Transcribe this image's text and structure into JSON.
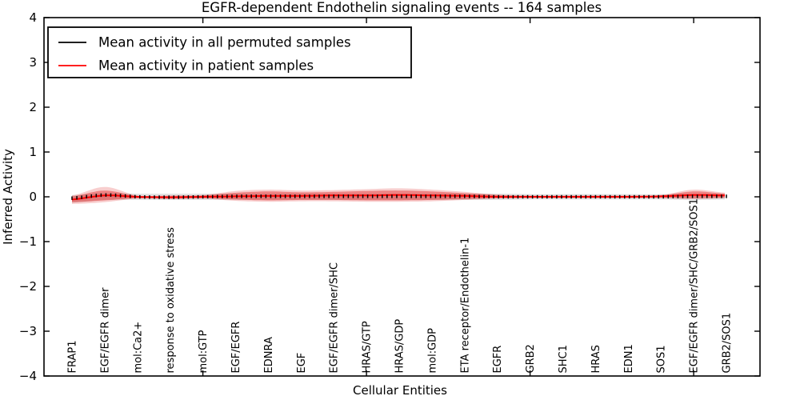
{
  "figure": {
    "background": "#ffffff",
    "border_color": "#000000"
  },
  "chart_data": {
    "type": "line",
    "title": "EGFR-dependent Endothelin signaling events -- 164 samples",
    "xlabel": "Cellular Entities",
    "ylabel": "Inferred Activity",
    "ylim": [
      -4,
      4
    ],
    "yticks": [
      4,
      3,
      2,
      1,
      0,
      -1,
      -2,
      -3,
      -4
    ],
    "y_tick_labels": [
      "4",
      "3",
      "2",
      "1",
      "0",
      "−1",
      "−2",
      "−3",
      "−4"
    ],
    "x_major_tick_indices": [
      4,
      9,
      14,
      19
    ],
    "grid": "off",
    "legend": {
      "position": "upper left",
      "entries": [
        {
          "label": "Mean activity in all permuted samples",
          "color": "#000000"
        },
        {
          "label": "Mean activity in patient samples",
          "color": "#ff0000"
        }
      ]
    },
    "categories": [
      "FRAP1",
      "EGF/EGFR dimer",
      "mol:Ca2+",
      "response to oxidative stress",
      "mol:GTP",
      "EGF/EGFR",
      "EDNRA",
      "EGF",
      "EGF/EGFR dimer/SHC",
      "HRAS/GTP",
      "HRAS/GDP",
      "mol:GDP",
      "ETA receptor/Endothelin-1",
      "EGFR",
      "GRB2",
      "SHC1",
      "HRAS",
      "EDN1",
      "SOS1",
      "EGF/EGFR dimer/SHC/GRB2/SOS1",
      "GRB2/SOS1"
    ],
    "series": [
      {
        "name": "Mean activity in all permuted samples",
        "color": "#000000",
        "style": "dashed-tick-markers",
        "values": [
          -0.03,
          0.04,
          0.0,
          -0.01,
          0.0,
          0.01,
          0.01,
          0.01,
          0.01,
          0.01,
          0.01,
          0.01,
          0.01,
          0.0,
          0.0,
          0.0,
          0.0,
          0.0,
          0.0,
          0.01,
          0.01
        ]
      },
      {
        "name": "Mean activity in patient samples",
        "color": "#ff0000",
        "style": "solid",
        "values": [
          -0.06,
          0.03,
          0.0,
          -0.01,
          0.0,
          0.01,
          0.02,
          0.02,
          0.03,
          0.03,
          0.04,
          0.03,
          0.02,
          0.0,
          0.0,
          0.0,
          0.0,
          0.0,
          0.01,
          0.04,
          0.03
        ]
      }
    ],
    "bands": [
      {
        "name": "permuted-sample-range",
        "color": "rgba(60,60,60,0.16)",
        "hi": [
          0.04,
          0.08,
          0.07,
          0.07,
          0.07,
          0.07,
          0.07,
          0.07,
          0.07,
          0.07,
          0.07,
          0.07,
          0.07,
          0.07,
          0.06,
          0.06,
          0.06,
          0.06,
          0.06,
          0.07,
          0.06
        ],
        "lo": [
          -0.13,
          -0.07,
          -0.07,
          -0.07,
          -0.07,
          -0.07,
          -0.07,
          -0.07,
          -0.07,
          -0.07,
          -0.07,
          -0.07,
          -0.07,
          -0.07,
          -0.06,
          -0.06,
          -0.06,
          -0.06,
          -0.06,
          -0.07,
          -0.06
        ]
      },
      {
        "name": "patient-outer-spread",
        "color": "rgba(225,30,30,0.22)",
        "hi": [
          0.03,
          0.22,
          0.03,
          0.03,
          0.04,
          0.13,
          0.16,
          0.14,
          0.15,
          0.17,
          0.19,
          0.16,
          0.11,
          0.05,
          0.03,
          0.03,
          0.03,
          0.03,
          0.04,
          0.16,
          0.09
        ],
        "lo": [
          -0.16,
          -0.12,
          -0.04,
          -0.05,
          -0.04,
          -0.09,
          -0.11,
          -0.1,
          -0.1,
          -0.11,
          -0.11,
          -0.1,
          -0.07,
          -0.04,
          -0.03,
          -0.03,
          -0.03,
          -0.03,
          -0.03,
          -0.05,
          -0.03
        ]
      },
      {
        "name": "patient-inner-spread",
        "color": "rgba(225,30,30,0.42)",
        "hi": [
          0.01,
          0.14,
          0.02,
          0.02,
          0.03,
          0.09,
          0.12,
          0.1,
          0.11,
          0.13,
          0.14,
          0.12,
          0.08,
          0.04,
          0.02,
          0.02,
          0.02,
          0.02,
          0.03,
          0.12,
          0.07
        ],
        "lo": [
          -0.12,
          -0.08,
          -0.03,
          -0.04,
          -0.03,
          -0.06,
          -0.08,
          -0.07,
          -0.07,
          -0.08,
          -0.08,
          -0.07,
          -0.05,
          -0.03,
          -0.02,
          -0.02,
          -0.02,
          -0.02,
          -0.02,
          -0.03,
          -0.02
        ]
      }
    ],
    "n_point_markers": 136
  }
}
